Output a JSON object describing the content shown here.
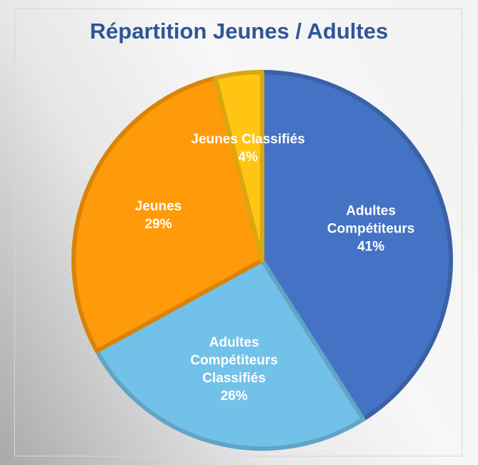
{
  "chart_data": {
    "type": "pie",
    "title": "Répartition Jeunes / Adultes",
    "categories": [
      "Adultes Compétiteurs",
      "Adultes Compétiteurs Classifiés",
      "Jeunes",
      "Jeunes Classifiés"
    ],
    "values": [
      41,
      26,
      29,
      4
    ],
    "value_labels": [
      "41%",
      "26%",
      "29%",
      "4%"
    ],
    "colors": [
      "#4472c4",
      "#72c1e9",
      "#ff9a0a",
      "#ffc512"
    ]
  }
}
